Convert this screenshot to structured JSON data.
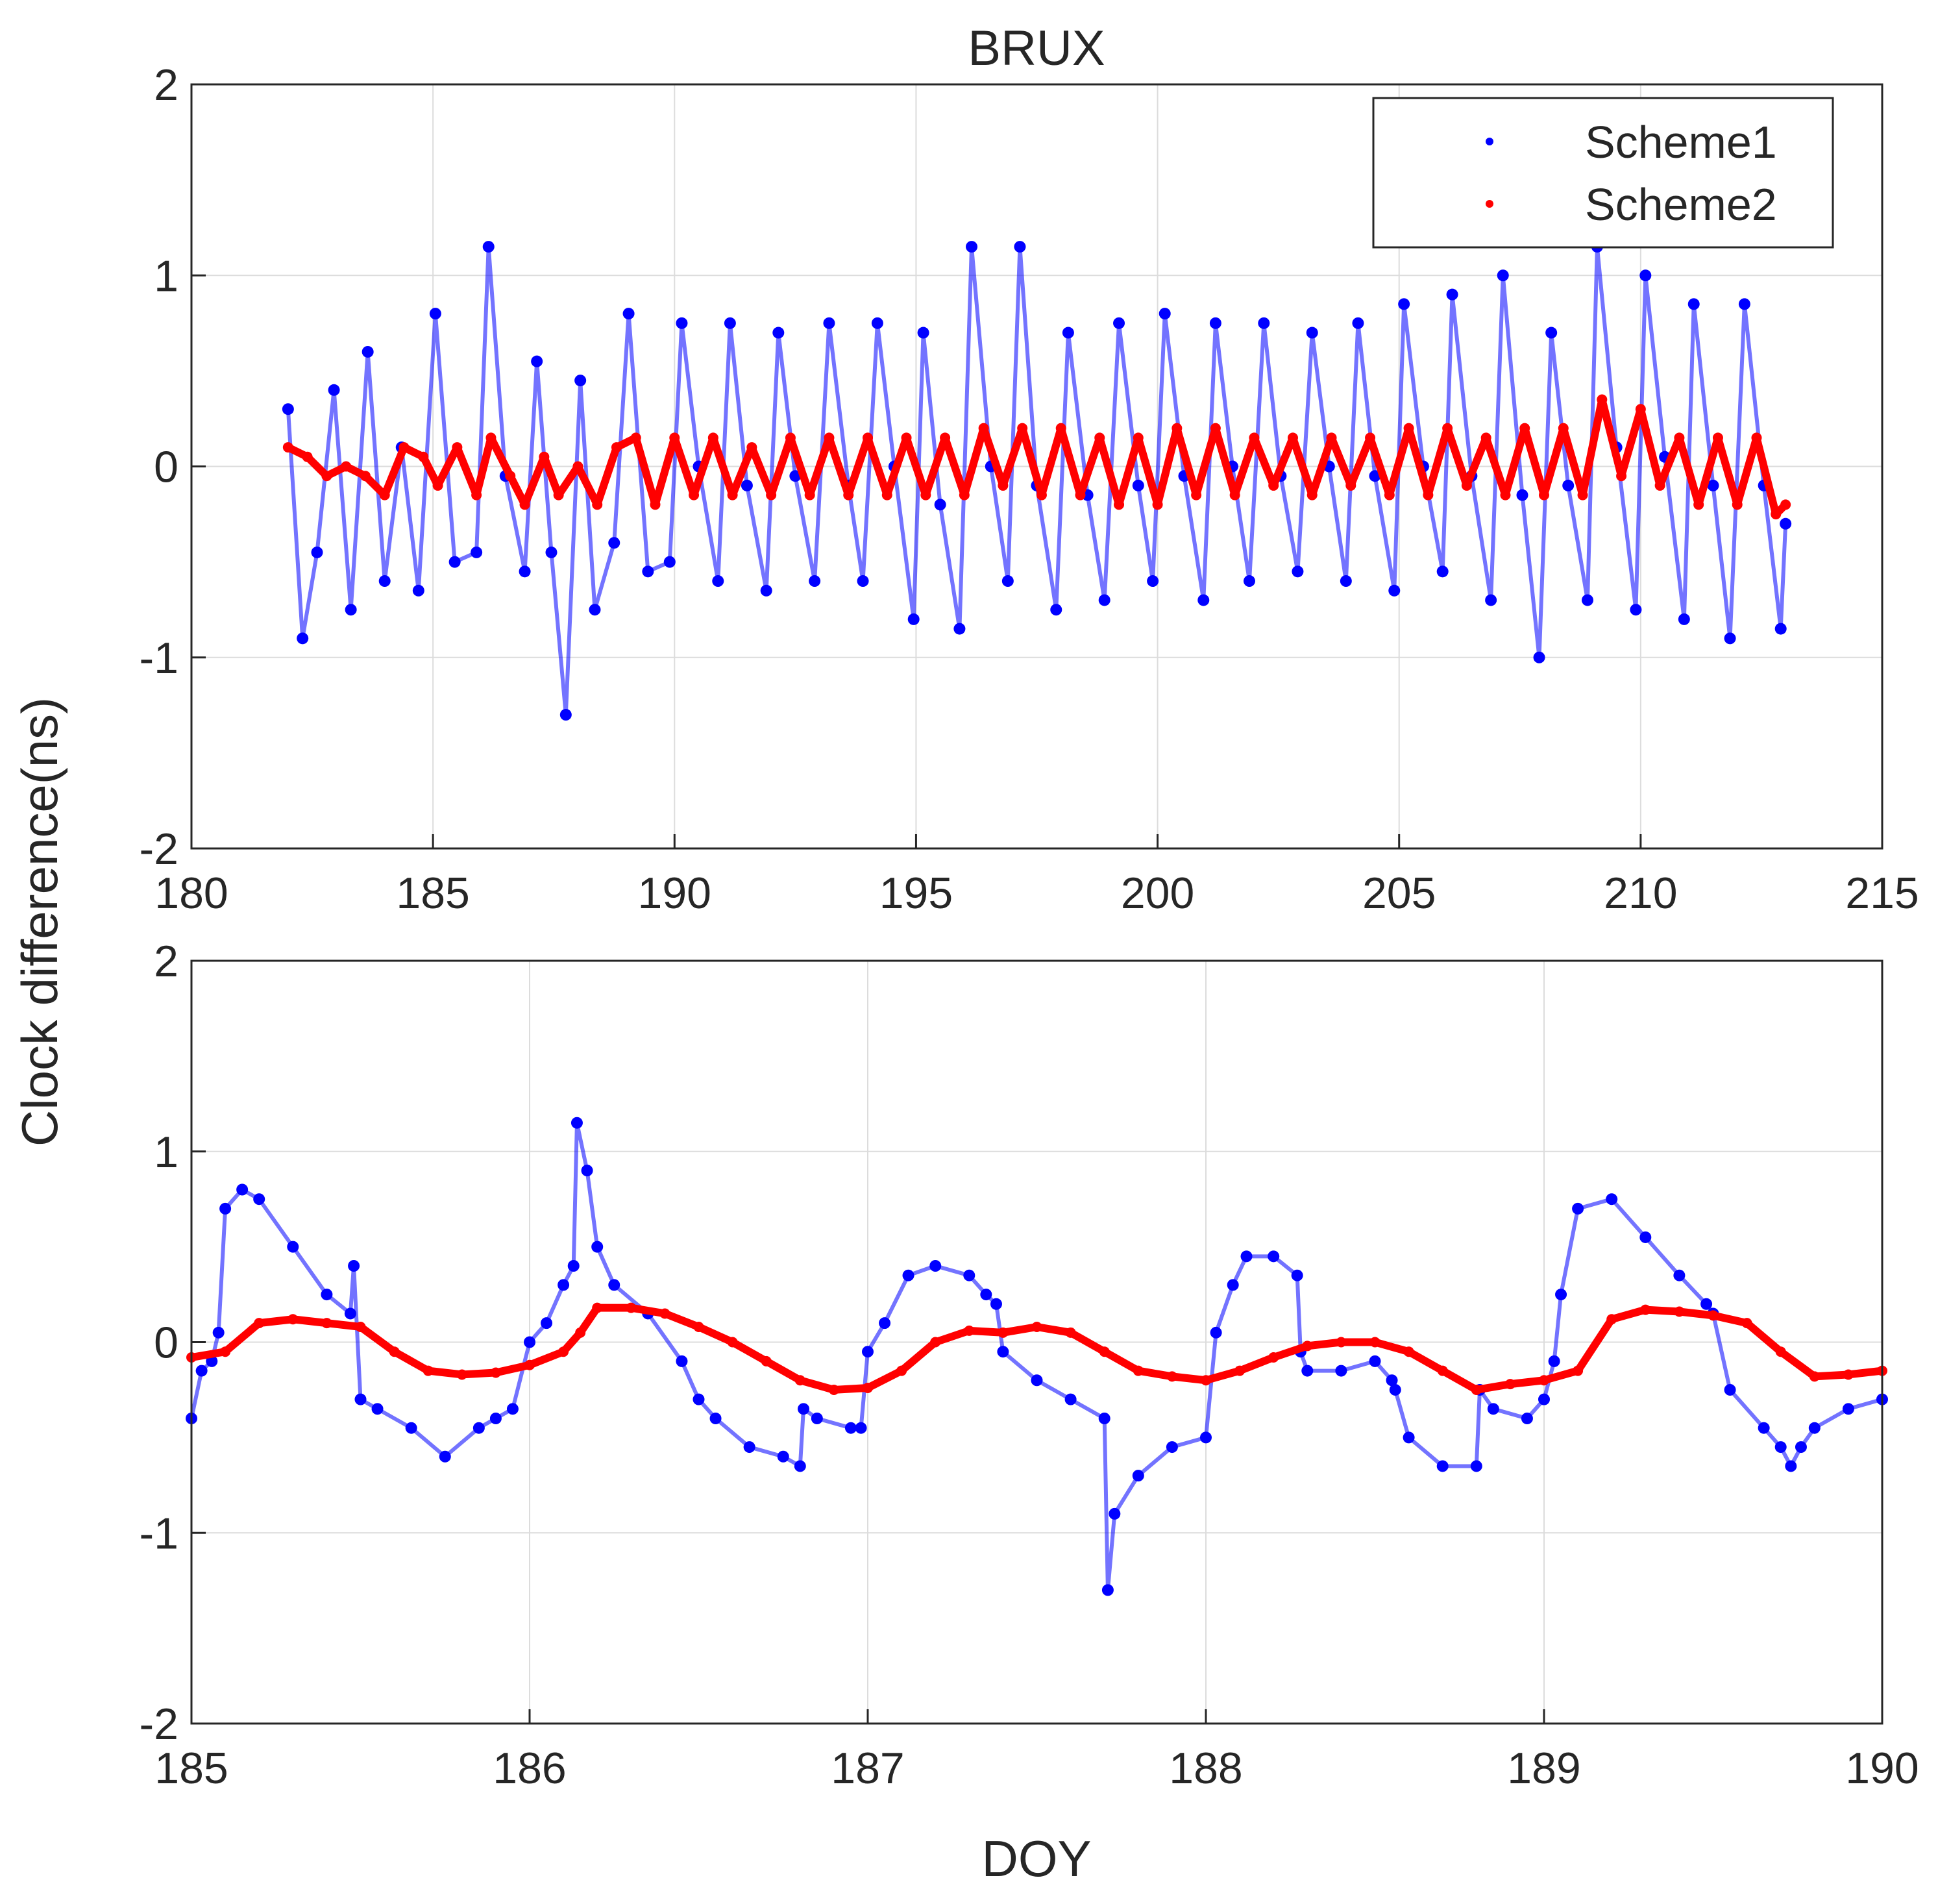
{
  "chart_data": [
    {
      "type": "scatter",
      "title": "BRUX",
      "xlabel": "",
      "ylabel": "",
      "xlim": [
        180,
        215
      ],
      "ylim": [
        -2,
        2
      ],
      "xticks": [
        180,
        185,
        190,
        195,
        200,
        205,
        210,
        215
      ],
      "yticks": [
        -2,
        -1,
        0,
        1,
        2
      ],
      "grid": true,
      "legend": {
        "position": "top-right",
        "entries": [
          "Scheme1",
          "Scheme2"
        ]
      },
      "series": [
        {
          "name": "Scheme1",
          "color": "#0000ff",
          "x": [
            182.0,
            182.3,
            182.6,
            182.95,
            183.3,
            183.65,
            184.0,
            184.35,
            184.7,
            185.05,
            185.45,
            185.9,
            186.15,
            186.5,
            186.9,
            187.15,
            187.45,
            187.75,
            188.05,
            188.35,
            188.75,
            189.05,
            189.45,
            189.9,
            190.15,
            190.5,
            190.9,
            191.15,
            191.5,
            191.9,
            192.15,
            192.5,
            192.9,
            193.2,
            193.6,
            193.9,
            194.2,
            194.55,
            194.95,
            195.15,
            195.5,
            195.9,
            196.15,
            196.55,
            196.9,
            197.15,
            197.5,
            197.9,
            198.15,
            198.55,
            198.9,
            199.2,
            199.6,
            199.9,
            200.15,
            200.55,
            200.95,
            201.2,
            201.55,
            201.9,
            202.2,
            202.55,
            202.9,
            203.2,
            203.55,
            203.9,
            204.15,
            204.5,
            204.9,
            205.1,
            205.5,
            205.9,
            206.1,
            206.5,
            206.9,
            207.15,
            207.55,
            207.9,
            208.15,
            208.5,
            208.9,
            209.1,
            209.5,
            209.9,
            210.1,
            210.5,
            210.9,
            211.1,
            211.5,
            211.85,
            212.15,
            212.55,
            212.9,
            213.0
          ],
          "values": [
            0.3,
            -0.9,
            -0.45,
            0.4,
            -0.75,
            0.6,
            -0.6,
            0.1,
            -0.65,
            0.8,
            -0.5,
            -0.45,
            1.15,
            -0.05,
            -0.55,
            0.55,
            -0.45,
            -1.3,
            0.45,
            -0.75,
            -0.4,
            0.8,
            -0.55,
            -0.5,
            0.75,
            0.0,
            -0.6,
            0.75,
            -0.1,
            -0.65,
            0.7,
            -0.05,
            -0.6,
            0.75,
            -0.1,
            -0.6,
            0.75,
            0.0,
            -0.8,
            0.7,
            -0.2,
            -0.85,
            1.15,
            0.0,
            -0.6,
            1.15,
            -0.1,
            -0.75,
            0.7,
            -0.15,
            -0.7,
            0.75,
            -0.1,
            -0.6,
            0.8,
            -0.05,
            -0.7,
            0.75,
            0.0,
            -0.6,
            0.75,
            -0.05,
            -0.55,
            0.7,
            0.0,
            -0.6,
            0.75,
            -0.05,
            -0.65,
            0.85,
            0.0,
            -0.55,
            0.9,
            -0.05,
            -0.7,
            1.0,
            -0.15,
            -1.0,
            0.7,
            -0.1,
            -0.7,
            1.15,
            0.1,
            -0.75,
            1.0,
            0.05,
            -0.8,
            0.85,
            -0.1,
            -0.9,
            0.85,
            -0.1,
            -0.85,
            -0.3
          ]
        },
        {
          "name": "Scheme2",
          "color": "#ff0000",
          "x": [
            182.0,
            182.4,
            182.8,
            183.2,
            183.6,
            184.0,
            184.4,
            184.8,
            185.1,
            185.5,
            185.9,
            186.2,
            186.6,
            186.9,
            187.3,
            187.6,
            188.0,
            188.4,
            188.8,
            189.2,
            189.6,
            190.0,
            190.4,
            190.8,
            191.2,
            191.6,
            192.0,
            192.4,
            192.8,
            193.2,
            193.6,
            194.0,
            194.4,
            194.8,
            195.2,
            195.6,
            196.0,
            196.4,
            196.8,
            197.2,
            197.6,
            198.0,
            198.4,
            198.8,
            199.2,
            199.6,
            200.0,
            200.4,
            200.8,
            201.2,
            201.6,
            202.0,
            202.4,
            202.8,
            203.2,
            203.6,
            204.0,
            204.4,
            204.8,
            205.2,
            205.6,
            206.0,
            206.4,
            206.8,
            207.2,
            207.6,
            208.0,
            208.4,
            208.8,
            209.2,
            209.6,
            210.0,
            210.4,
            210.8,
            211.2,
            211.6,
            212.0,
            212.4,
            212.8,
            213.0
          ],
          "values": [
            0.1,
            0.05,
            -0.05,
            0.0,
            -0.05,
            -0.15,
            0.1,
            0.05,
            -0.1,
            0.1,
            -0.15,
            0.15,
            -0.05,
            -0.2,
            0.05,
            -0.15,
            0.0,
            -0.2,
            0.1,
            0.15,
            -0.2,
            0.15,
            -0.15,
            0.15,
            -0.15,
            0.1,
            -0.15,
            0.15,
            -0.15,
            0.15,
            -0.15,
            0.15,
            -0.15,
            0.15,
            -0.15,
            0.15,
            -0.15,
            0.2,
            -0.1,
            0.2,
            -0.15,
            0.2,
            -0.15,
            0.15,
            -0.2,
            0.15,
            -0.2,
            0.2,
            -0.15,
            0.2,
            -0.15,
            0.15,
            -0.1,
            0.15,
            -0.15,
            0.15,
            -0.1,
            0.15,
            -0.15,
            0.2,
            -0.15,
            0.2,
            -0.1,
            0.15,
            -0.15,
            0.2,
            -0.15,
            0.2,
            -0.15,
            0.35,
            -0.05,
            0.3,
            -0.1,
            0.15,
            -0.2,
            0.15,
            -0.2,
            0.15,
            -0.25,
            -0.2
          ]
        }
      ]
    },
    {
      "type": "scatter",
      "title": "",
      "xlabel": "DOY",
      "ylabel": "",
      "xlim": [
        185,
        190
      ],
      "ylim": [
        -2,
        2
      ],
      "xticks": [
        185,
        186,
        187,
        188,
        189,
        190
      ],
      "yticks": [
        -2,
        -1,
        0,
        1,
        2
      ],
      "grid": true,
      "series": [
        {
          "name": "Scheme1",
          "color": "#0000ff",
          "x": [
            185.0,
            185.03,
            185.06,
            185.08,
            185.1,
            185.15,
            185.2,
            185.3,
            185.4,
            185.47,
            185.48,
            185.5,
            185.55,
            185.65,
            185.75,
            185.85,
            185.9,
            185.95,
            186.0,
            186.05,
            186.1,
            186.13,
            186.14,
            186.17,
            186.2,
            186.25,
            186.35,
            186.45,
            186.5,
            186.55,
            186.65,
            186.75,
            186.8,
            186.81,
            186.85,
            186.95,
            186.98,
            187.0,
            187.05,
            187.12,
            187.2,
            187.3,
            187.35,
            187.38,
            187.4,
            187.5,
            187.6,
            187.7,
            187.71,
            187.73,
            187.8,
            187.9,
            188.0,
            188.03,
            188.08,
            188.12,
            188.2,
            188.27,
            188.28,
            188.3,
            188.4,
            188.5,
            188.55,
            188.56,
            188.6,
            188.7,
            188.8,
            188.81,
            188.85,
            188.95,
            189.0,
            189.03,
            189.05,
            189.1,
            189.2,
            189.3,
            189.4,
            189.48,
            189.5,
            189.55,
            189.65,
            189.7,
            189.73,
            189.76,
            189.8,
            189.9,
            190.0
          ],
          "values": [
            -0.4,
            -0.15,
            -0.1,
            0.05,
            0.7,
            0.8,
            0.75,
            0.5,
            0.25,
            0.15,
            0.4,
            -0.3,
            -0.35,
            -0.45,
            -0.6,
            -0.45,
            -0.4,
            -0.35,
            0.0,
            0.1,
            0.3,
            0.4,
            1.15,
            0.9,
            0.5,
            0.3,
            0.15,
            -0.1,
            -0.3,
            -0.4,
            -0.55,
            -0.6,
            -0.65,
            -0.35,
            -0.4,
            -0.45,
            -0.45,
            -0.05,
            0.1,
            0.35,
            0.4,
            0.35,
            0.25,
            0.2,
            -0.05,
            -0.2,
            -0.3,
            -0.4,
            -1.3,
            -0.9,
            -0.7,
            -0.55,
            -0.5,
            0.05,
            0.3,
            0.45,
            0.45,
            0.35,
            -0.05,
            -0.15,
            -0.15,
            -0.1,
            -0.2,
            -0.25,
            -0.5,
            -0.65,
            -0.65,
            -0.25,
            -0.35,
            -0.4,
            -0.3,
            -0.1,
            0.25,
            0.7,
            0.75,
            0.55,
            0.35,
            0.2,
            0.15,
            -0.25,
            -0.45,
            -0.55,
            -0.65,
            -0.55,
            -0.45,
            -0.35,
            -0.3
          ]
        },
        {
          "name": "Scheme2",
          "color": "#ff0000",
          "x": [
            185.0,
            185.1,
            185.2,
            185.3,
            185.4,
            185.5,
            185.6,
            185.7,
            185.8,
            185.9,
            186.0,
            186.1,
            186.15,
            186.2,
            186.3,
            186.4,
            186.5,
            186.6,
            186.7,
            186.8,
            186.9,
            187.0,
            187.1,
            187.2,
            187.3,
            187.4,
            187.5,
            187.6,
            187.7,
            187.8,
            187.9,
            188.0,
            188.1,
            188.2,
            188.3,
            188.4,
            188.5,
            188.6,
            188.7,
            188.8,
            188.9,
            189.0,
            189.1,
            189.2,
            189.3,
            189.4,
            189.5,
            189.6,
            189.7,
            189.8,
            189.9,
            190.0
          ],
          "values": [
            -0.08,
            -0.05,
            0.1,
            0.12,
            0.1,
            0.08,
            -0.05,
            -0.15,
            -0.17,
            -0.16,
            -0.12,
            -0.05,
            0.05,
            0.18,
            0.18,
            0.15,
            0.08,
            0.0,
            -0.1,
            -0.2,
            -0.25,
            -0.24,
            -0.15,
            0.0,
            0.06,
            0.05,
            0.08,
            0.05,
            -0.05,
            -0.15,
            -0.18,
            -0.2,
            -0.15,
            -0.08,
            -0.02,
            0.0,
            0.0,
            -0.05,
            -0.15,
            -0.25,
            -0.22,
            -0.2,
            -0.15,
            0.12,
            0.17,
            0.16,
            0.14,
            0.1,
            -0.05,
            -0.18,
            -0.17,
            -0.15
          ]
        }
      ]
    }
  ],
  "shared_ylabel": "Clock difference(ns)"
}
